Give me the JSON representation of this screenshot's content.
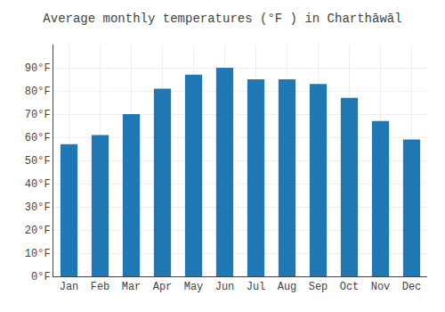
{
  "chart_data": {
    "type": "bar",
    "title": "Average monthly temperatures (°F ) in Charthāwāl",
    "categories": [
      "Jan",
      "Feb",
      "Mar",
      "Apr",
      "May",
      "Jun",
      "Jul",
      "Aug",
      "Sep",
      "Oct",
      "Nov",
      "Dec"
    ],
    "values": [
      57,
      61,
      70,
      81,
      87,
      90,
      85,
      85,
      83,
      77,
      67,
      59
    ],
    "ylim": [
      0,
      100
    ],
    "yticks": [
      {
        "value": 0,
        "label": "0°F"
      },
      {
        "value": 10,
        "label": "10°F"
      },
      {
        "value": 20,
        "label": "20°F"
      },
      {
        "value": 30,
        "label": "30°F"
      },
      {
        "value": 40,
        "label": "40°F"
      },
      {
        "value": 50,
        "label": "50°F"
      },
      {
        "value": 60,
        "label": "60°F"
      },
      {
        "value": 70,
        "label": "70°F"
      },
      {
        "value": 80,
        "label": "80°F"
      },
      {
        "value": 90,
        "label": "90°F"
      }
    ],
    "grid": true
  }
}
